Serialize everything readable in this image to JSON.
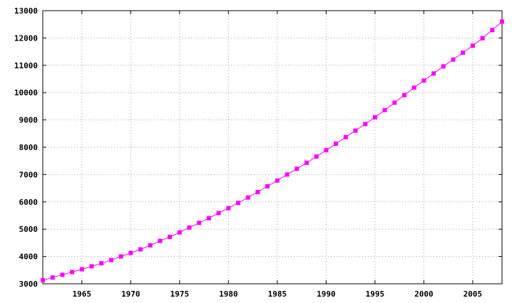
{
  "chart_data": {
    "type": "line",
    "title": "",
    "xlabel": "",
    "ylabel": "",
    "xlim": [
      1961,
      2008
    ],
    "ylim": [
      3000,
      13000
    ],
    "grid": true,
    "xticks": [
      1965,
      1970,
      1975,
      1980,
      1985,
      1990,
      1995,
      2000,
      2005
    ],
    "yticks": [
      3000,
      4000,
      5000,
      6000,
      7000,
      8000,
      9000,
      10000,
      11000,
      12000,
      13000
    ],
    "series": [
      {
        "color": "#ff00ff",
        "marker": "square",
        "x": [
          1961,
          1962,
          1963,
          1964,
          1965,
          1966,
          1967,
          1968,
          1969,
          1970,
          1971,
          1972,
          1973,
          1974,
          1975,
          1976,
          1977,
          1978,
          1979,
          1980,
          1981,
          1982,
          1983,
          1984,
          1985,
          1986,
          1987,
          1988,
          1989,
          1990,
          1991,
          1992,
          1993,
          1994,
          1995,
          1996,
          1997,
          1998,
          1999,
          2000,
          2001,
          2002,
          2003,
          2004,
          2005,
          2006,
          2007,
          2008
        ],
        "values": [
          3130,
          3230,
          3330,
          3430,
          3530,
          3640,
          3750,
          3870,
          4000,
          4130,
          4260,
          4410,
          4570,
          4720,
          4880,
          5060,
          5230,
          5400,
          5590,
          5770,
          5960,
          6160,
          6360,
          6570,
          6780,
          7000,
          7210,
          7430,
          7660,
          7890,
          8130,
          8370,
          8610,
          8850,
          9100,
          9360,
          9630,
          9910,
          10180,
          10440,
          10700,
          10960,
          11210,
          11460,
          11720,
          11990,
          12290,
          12600
        ]
      }
    ]
  }
}
